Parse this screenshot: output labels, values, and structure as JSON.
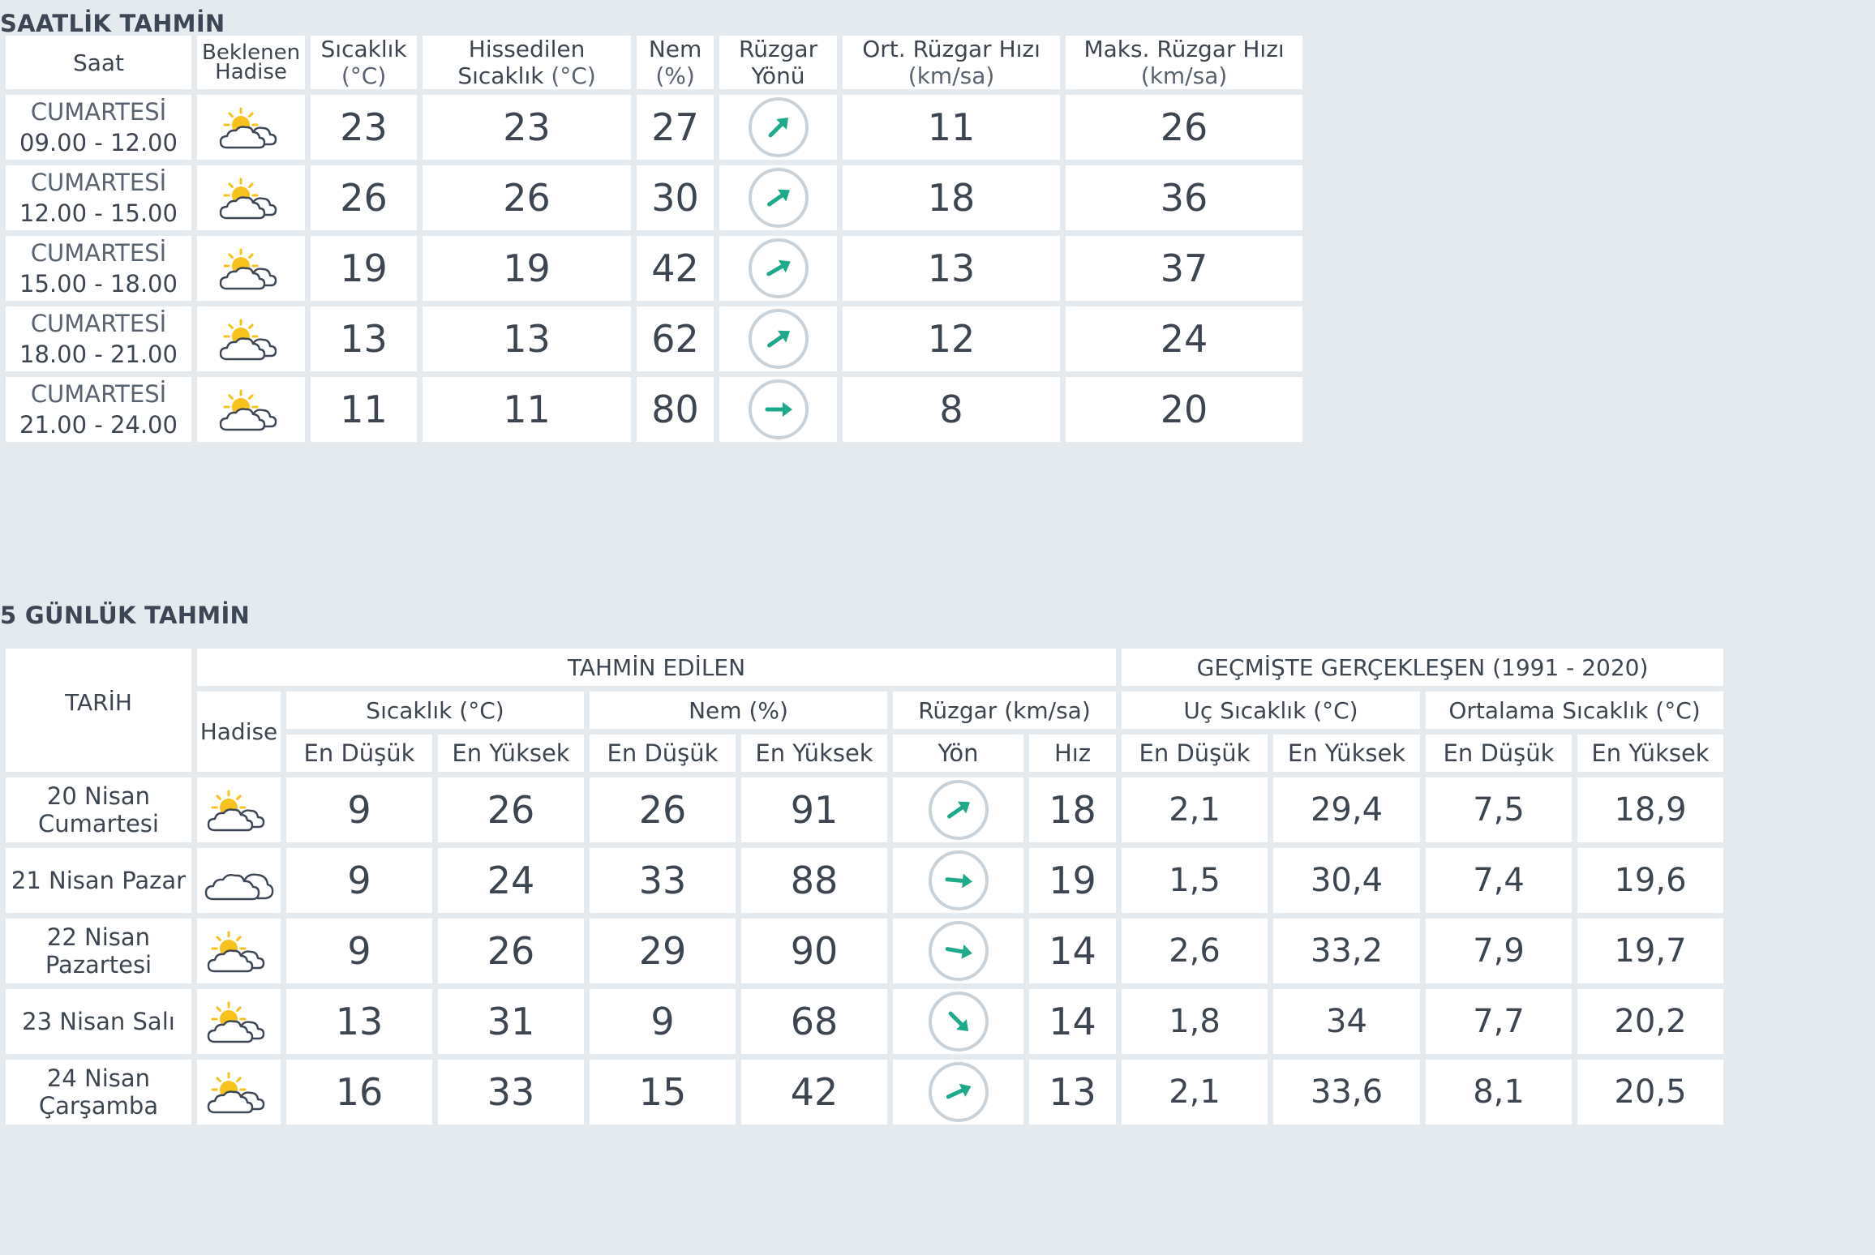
{
  "hourly": {
    "title": "SAATLİK TAHMİN",
    "headers": {
      "saat": "Saat",
      "hadise": "Beklenen Hadise",
      "sicaklik": "Sıcaklık",
      "sicaklik_unit": "(°C)",
      "hissedilen": "Hissedilen Sıcaklık",
      "hissedilen_unit": "(°C)",
      "nem": "Nem",
      "nem_unit": "(%)",
      "yon": "Rüzgar Yönü",
      "ort": "Ort. Rüzgar Hızı",
      "ort_unit": "(km/sa)",
      "maks": "Maks. Rüzgar Hızı",
      "maks_unit": "(km/sa)"
    },
    "rows": [
      {
        "day": "CUMARTESİ",
        "time": "09.00 - 12.00",
        "icon": "partly-cloudy-icon",
        "temp": "23",
        "feels": "23",
        "humidity": "27",
        "wind_dir_deg": 45,
        "wind_avg": "11",
        "wind_max": "26"
      },
      {
        "day": "CUMARTESİ",
        "time": "12.00 - 15.00",
        "icon": "partly-cloudy-icon",
        "temp": "26",
        "feels": "26",
        "humidity": "30",
        "wind_dir_deg": 55,
        "wind_avg": "18",
        "wind_max": "36"
      },
      {
        "day": "CUMARTESİ",
        "time": "15.00 - 18.00",
        "icon": "partly-cloudy-icon",
        "temp": "19",
        "feels": "19",
        "humidity": "42",
        "wind_dir_deg": 60,
        "wind_avg": "13",
        "wind_max": "37"
      },
      {
        "day": "CUMARTESİ",
        "time": "18.00 - 21.00",
        "icon": "partly-cloudy-icon",
        "temp": "13",
        "feels": "13",
        "humidity": "62",
        "wind_dir_deg": 55,
        "wind_avg": "12",
        "wind_max": "24"
      },
      {
        "day": "CUMARTESİ",
        "time": "21.00 - 24.00",
        "icon": "partly-cloudy-icon",
        "temp": "11",
        "feels": "11",
        "humidity": "80",
        "wind_dir_deg": 90,
        "wind_avg": "8",
        "wind_max": "20"
      }
    ]
  },
  "daily": {
    "title": "5 GÜNLÜK TAHMİN",
    "headers": {
      "tarih": "TARİH",
      "tahmin": "TAHMİN EDİLEN",
      "gecmis": "GEÇMİŞTE GERÇEKLEŞEN (1991 - 2020)",
      "hadise": "Hadise",
      "sicaklik": "Sıcaklık (°C)",
      "nem": "Nem (%)",
      "ruzgar": "Rüzgar (km/sa)",
      "uc": "Uç Sıcaklık (°C)",
      "ortalama": "Ortalama Sıcaklık (°C)",
      "en_dusuk": "En Düşük",
      "en_yuksek": "En Yüksek",
      "yon": "Yön",
      "hiz": "Hız"
    },
    "rows": [
      {
        "date": "20 Nisan Cumartesi",
        "icon": "partly-cloudy-icon",
        "tmin": "9",
        "tmax": "26",
        "hmin": "26",
        "hmax": "91",
        "wind_dir_deg": 55,
        "wind_speed": "18",
        "uc_min": "2,1",
        "uc_max": "29,4",
        "ort_min": "7,5",
        "ort_max": "18,9"
      },
      {
        "date": "21 Nisan Pazar",
        "icon": "cloudy-icon",
        "tmin": "9",
        "tmax": "24",
        "hmin": "33",
        "hmax": "88",
        "wind_dir_deg": 95,
        "wind_speed": "19",
        "uc_min": "1,5",
        "uc_max": "30,4",
        "ort_min": "7,4",
        "ort_max": "19,6"
      },
      {
        "date": "22 Nisan Pazartesi",
        "icon": "partly-cloudy-icon",
        "tmin": "9",
        "tmax": "26",
        "hmin": "29",
        "hmax": "90",
        "wind_dir_deg": 100,
        "wind_speed": "14",
        "uc_min": "2,6",
        "uc_max": "33,2",
        "ort_min": "7,9",
        "ort_max": "19,7"
      },
      {
        "date": "23 Nisan Salı",
        "icon": "partly-cloudy-icon",
        "tmin": "13",
        "tmax": "31",
        "hmin": "9",
        "hmax": "68",
        "wind_dir_deg": 135,
        "wind_speed": "14",
        "uc_min": "1,8",
        "uc_max": "34",
        "ort_min": "7,7",
        "ort_max": "20,2"
      },
      {
        "date": "24 Nisan Çarşamba",
        "icon": "partly-cloudy-icon",
        "tmin": "16",
        "tmax": "33",
        "hmin": "15",
        "hmax": "42",
        "wind_dir_deg": 65,
        "wind_speed": "13",
        "uc_min": "2,1",
        "uc_max": "33,6",
        "ort_min": "8,1",
        "ort_max": "20,5"
      }
    ]
  },
  "colors": {
    "temperature": "#d7253f",
    "humidity": "#5e539c",
    "wind": "#1ea98a",
    "low": "#2b78ae",
    "humidity_low": "#e59a1b"
  }
}
